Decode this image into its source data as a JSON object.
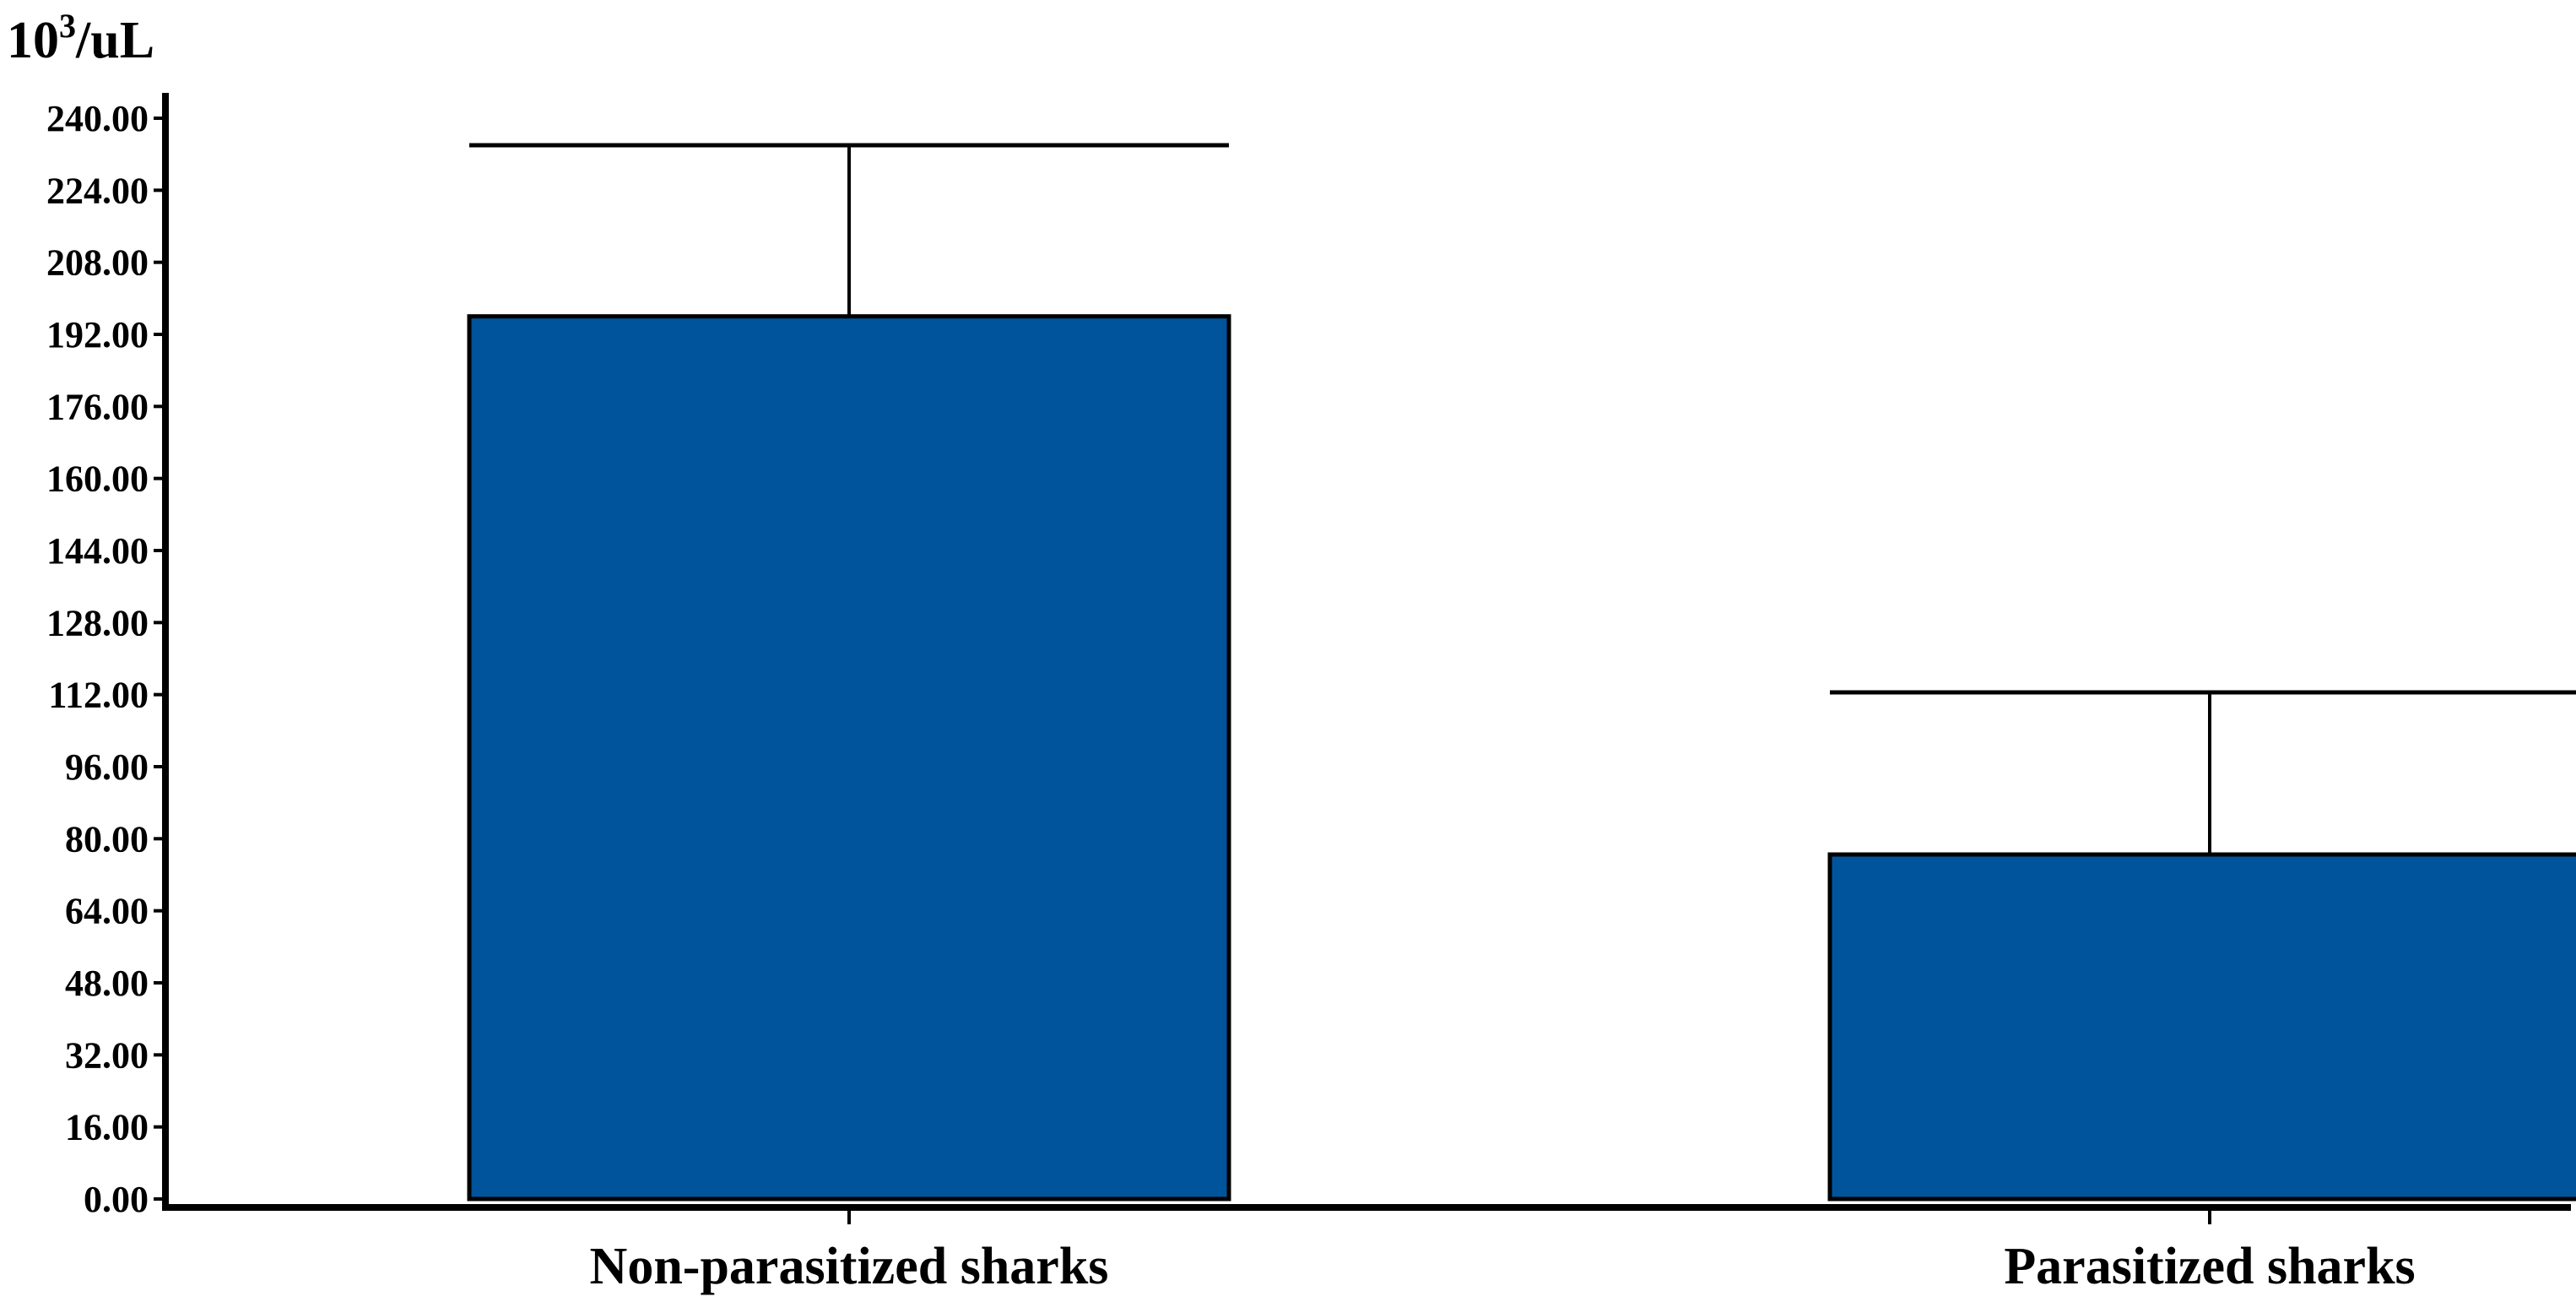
{
  "chart_data": {
    "type": "bar",
    "ylabel_base": "10",
    "ylabel_exp": "3",
    "ylabel_unit": "/uL",
    "categories": [
      "Non-parasitized sharks",
      "Parasitized sharks"
    ],
    "values": [
      196.0,
      76.5
    ],
    "error_upper": [
      234.0,
      112.5
    ],
    "ylim": [
      0,
      240
    ],
    "yticks": [
      "0.00",
      "16.00",
      "32.00",
      "48.00",
      "64.00",
      "80.00",
      "96.00",
      "112.00",
      "128.00",
      "144.00",
      "160.00",
      "176.00",
      "192.00",
      "208.00",
      "224.00",
      "240.00"
    ],
    "ytick_values": [
      0,
      16,
      32,
      48,
      64,
      80,
      96,
      112,
      128,
      144,
      160,
      176,
      192,
      208,
      224,
      240
    ],
    "bar_color": "#00549b",
    "grid": false,
    "legend": "none"
  }
}
